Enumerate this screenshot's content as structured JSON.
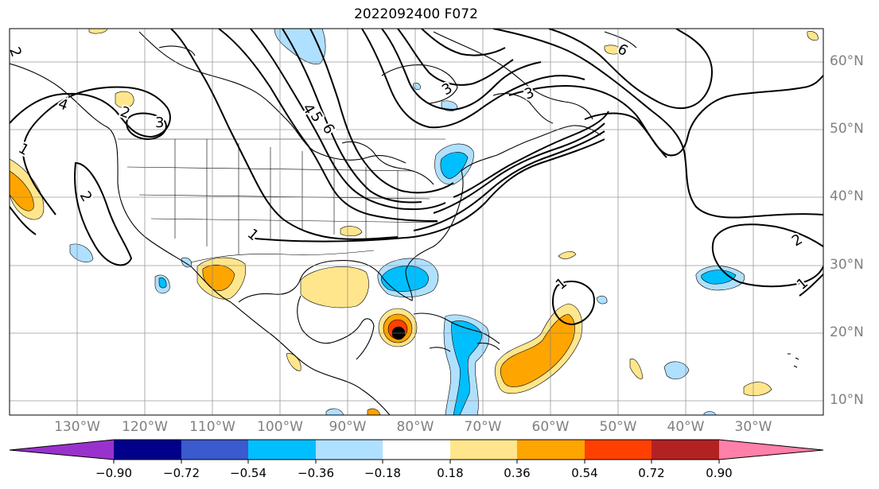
{
  "title": "2022092400 F072",
  "lat_labels": [
    "60°N",
    "50°N",
    "40°N",
    "30°N",
    "20°N",
    "10°N"
  ],
  "lon_labels": [
    "130°W",
    "120°W",
    "110°W",
    "100°W",
    "90°W",
    "80°W",
    "70°W",
    "60°W",
    "50°W",
    "40°W",
    "30°W"
  ],
  "contour_labels": [
    "1",
    "2",
    "3",
    "4",
    "5",
    "6",
    "1",
    "2",
    "3",
    "1",
    "2",
    "1",
    "2",
    "3",
    "4",
    "6"
  ],
  "colorbar": {
    "ticks": [
      "−0.90",
      "−0.72",
      "−0.54",
      "−0.36",
      "−0.18",
      "0.18",
      "0.36",
      "0.54",
      "0.72",
      "0.90"
    ],
    "colors": [
      "#9932cc",
      "#00008b",
      "#3a5acd",
      "#00bfff",
      "#b0e0ff",
      "#ffffff",
      "#ffe68c",
      "#ffa500",
      "#ff4000",
      "#b22222",
      "#ff80a8"
    ]
  }
}
